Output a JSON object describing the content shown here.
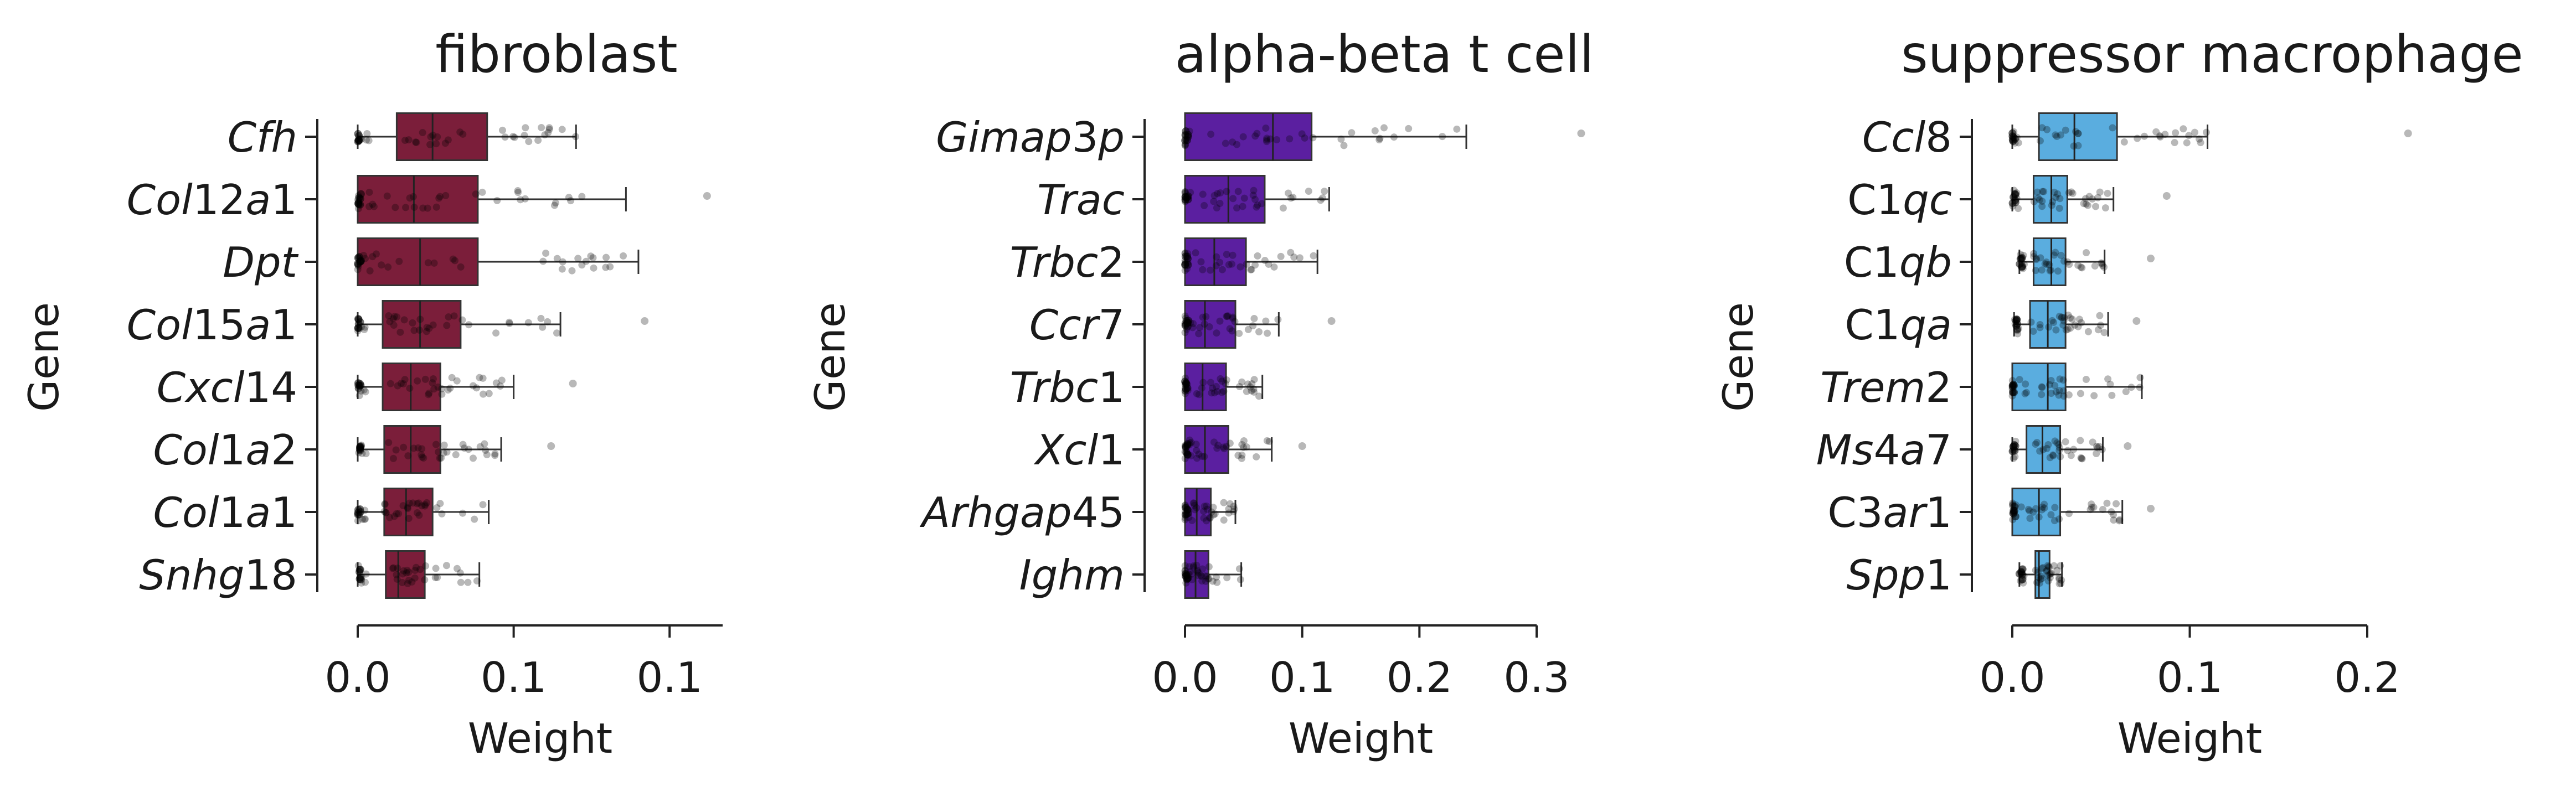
{
  "chart_data": [
    {
      "type": "box",
      "title": "fibroblast",
      "xlabel": "Weight",
      "ylabel": "Gene",
      "color": "#7b1e3a",
      "xlim": [
        0,
        0.117
      ],
      "xticks": [
        0.0,
        0.05,
        0.1
      ],
      "xtick_labels": [
        "0.0",
        "0.1",
        "0.1"
      ],
      "categories": [
        {
          "parts": [
            [
              "Cfh",
              true
            ]
          ]
        },
        {
          "parts": [
            [
              "Col",
              true
            ],
            [
              "12",
              false
            ],
            [
              "a",
              true
            ],
            [
              "1",
              false
            ]
          ]
        },
        {
          "parts": [
            [
              "Dpt",
              true
            ]
          ]
        },
        {
          "parts": [
            [
              "Col",
              true
            ],
            [
              "15",
              false
            ],
            [
              "a",
              true
            ],
            [
              "1",
              false
            ]
          ]
        },
        {
          "parts": [
            [
              "Cxcl",
              true
            ],
            [
              "14",
              false
            ]
          ]
        },
        {
          "parts": [
            [
              "Col",
              true
            ],
            [
              "1",
              false
            ],
            [
              "a",
              true
            ],
            [
              "2",
              false
            ]
          ]
        },
        {
          "parts": [
            [
              "Col",
              true
            ],
            [
              "1",
              false
            ],
            [
              "a",
              true
            ],
            [
              "1",
              false
            ]
          ]
        },
        {
          "parts": [
            [
              "Snhg",
              true
            ],
            [
              "18",
              false
            ]
          ]
        }
      ],
      "boxes": [
        {
          "wlo": 0.0,
          "q1": 0.0125,
          "median": 0.024,
          "q3": 0.0415,
          "whi": 0.07,
          "outliers": []
        },
        {
          "wlo": 0.0,
          "q1": 0.0,
          "median": 0.018,
          "q3": 0.0385,
          "whi": 0.086,
          "outliers": [
            0.112
          ]
        },
        {
          "wlo": 0.0,
          "q1": 0.0,
          "median": 0.02,
          "q3": 0.0385,
          "whi": 0.09,
          "outliers": []
        },
        {
          "wlo": 0.0,
          "q1": 0.008,
          "median": 0.02,
          "q3": 0.033,
          "whi": 0.065,
          "outliers": [
            0.092
          ]
        },
        {
          "wlo": 0.0,
          "q1": 0.008,
          "median": 0.017,
          "q3": 0.0265,
          "whi": 0.05,
          "outliers": [
            0.069
          ]
        },
        {
          "wlo": 0.0,
          "q1": 0.0085,
          "median": 0.017,
          "q3": 0.0265,
          "whi": 0.046,
          "outliers": [
            0.062
          ]
        },
        {
          "wlo": 0.0,
          "q1": 0.0085,
          "median": 0.0155,
          "q3": 0.024,
          "whi": 0.042,
          "outliers": []
        },
        {
          "wlo": 0.0,
          "q1": 0.009,
          "median": 0.013,
          "q3": 0.0215,
          "whi": 0.039,
          "outliers": []
        }
      ]
    },
    {
      "type": "box",
      "title": "alpha-beta t cell",
      "xlabel": "Weight",
      "ylabel": "Gene",
      "color": "#5b1fa0",
      "xlim": [
        0,
        0.3
      ],
      "xticks": [
        0.0,
        0.1,
        0.2,
        0.3
      ],
      "xtick_labels": [
        "0.0",
        "0.1",
        "0.2",
        "0.3"
      ],
      "categories": [
        {
          "parts": [
            [
              "Gimap",
              true
            ],
            [
              "3",
              false
            ],
            [
              "p",
              true
            ]
          ]
        },
        {
          "parts": [
            [
              "Trac",
              true
            ]
          ]
        },
        {
          "parts": [
            [
              "Trbc",
              true
            ],
            [
              "2",
              false
            ]
          ]
        },
        {
          "parts": [
            [
              "Ccr",
              true
            ],
            [
              "7",
              false
            ]
          ]
        },
        {
          "parts": [
            [
              "Trbc",
              true
            ],
            [
              "1",
              false
            ]
          ]
        },
        {
          "parts": [
            [
              "Xcl",
              true
            ],
            [
              "1",
              false
            ]
          ]
        },
        {
          "parts": [
            [
              "Arhgap",
              true
            ],
            [
              "45",
              false
            ]
          ]
        },
        {
          "parts": [
            [
              "Ighm",
              true
            ]
          ]
        }
      ],
      "boxes": [
        {
          "wlo": 0.0,
          "q1": 0.0,
          "median": 0.075,
          "q3": 0.108,
          "whi": 0.24,
          "outliers": [
            0.338
          ]
        },
        {
          "wlo": 0.0,
          "q1": 0.0,
          "median": 0.037,
          "q3": 0.068,
          "whi": 0.123,
          "outliers": []
        },
        {
          "wlo": 0.0,
          "q1": 0.0,
          "median": 0.025,
          "q3": 0.052,
          "whi": 0.113,
          "outliers": []
        },
        {
          "wlo": 0.0,
          "q1": 0.0,
          "median": 0.017,
          "q3": 0.043,
          "whi": 0.08,
          "outliers": [
            0.125
          ]
        },
        {
          "wlo": 0.0,
          "q1": 0.0,
          "median": 0.015,
          "q3": 0.035,
          "whi": 0.066,
          "outliers": []
        },
        {
          "wlo": 0.0,
          "q1": 0.0,
          "median": 0.017,
          "q3": 0.037,
          "whi": 0.074,
          "outliers": [
            0.1
          ]
        },
        {
          "wlo": 0.0,
          "q1": 0.0,
          "median": 0.01,
          "q3": 0.022,
          "whi": 0.043,
          "outliers": []
        },
        {
          "wlo": 0.0,
          "q1": 0.0,
          "median": 0.009,
          "q3": 0.02,
          "whi": 0.048,
          "outliers": []
        }
      ]
    },
    {
      "type": "box",
      "title": "suppressor macrophage",
      "xlabel": "Weight",
      "ylabel": "Gene",
      "color": "#5aaddf",
      "xlim": [
        0,
        0.2
      ],
      "xticks": [
        0.0,
        0.1,
        0.2
      ],
      "xtick_labels": [
        "0.0",
        "0.1",
        "0.2"
      ],
      "categories": [
        {
          "parts": [
            [
              "Ccl",
              true
            ],
            [
              "8",
              false
            ]
          ]
        },
        {
          "parts": [
            [
              "C",
              false
            ],
            [
              "1",
              false
            ],
            [
              "qc",
              true
            ]
          ]
        },
        {
          "parts": [
            [
              "C",
              false
            ],
            [
              "1",
              false
            ],
            [
              "qb",
              true
            ]
          ]
        },
        {
          "parts": [
            [
              "C",
              false
            ],
            [
              "1",
              false
            ],
            [
              "qa",
              true
            ]
          ]
        },
        {
          "parts": [
            [
              "Trem",
              true
            ],
            [
              "2",
              false
            ]
          ]
        },
        {
          "parts": [
            [
              "Ms",
              true
            ],
            [
              "4",
              false
            ],
            [
              "a",
              true
            ],
            [
              "7",
              false
            ]
          ]
        },
        {
          "parts": [
            [
              "C",
              false
            ],
            [
              "3",
              false
            ],
            [
              "ar",
              true
            ],
            [
              "1",
              false
            ]
          ]
        },
        {
          "parts": [
            [
              "Spp",
              true
            ],
            [
              "1",
              false
            ]
          ]
        }
      ],
      "boxes": [
        {
          "wlo": 0.0,
          "q1": 0.015,
          "median": 0.035,
          "q3": 0.059,
          "whi": 0.11,
          "outliers": [
            0.223
          ]
        },
        {
          "wlo": 0.0,
          "q1": 0.012,
          "median": 0.022,
          "q3": 0.031,
          "whi": 0.057,
          "outliers": [
            0.087
          ]
        },
        {
          "wlo": 0.004,
          "q1": 0.012,
          "median": 0.022,
          "q3": 0.03,
          "whi": 0.052,
          "outliers": [
            0.078
          ]
        },
        {
          "wlo": 0.001,
          "q1": 0.01,
          "median": 0.02,
          "q3": 0.03,
          "whi": 0.054,
          "outliers": [
            0.07
          ]
        },
        {
          "wlo": 0.0,
          "q1": 0.0,
          "median": 0.02,
          "q3": 0.03,
          "whi": 0.073,
          "outliers": []
        },
        {
          "wlo": 0.0,
          "q1": 0.008,
          "median": 0.017,
          "q3": 0.027,
          "whi": 0.051,
          "outliers": [
            0.065
          ]
        },
        {
          "wlo": 0.0,
          "q1": 0.0,
          "median": 0.015,
          "q3": 0.027,
          "whi": 0.062,
          "outliers": [
            0.078
          ]
        },
        {
          "wlo": 0.004,
          "q1": 0.013,
          "median": 0.015,
          "q3": 0.021,
          "whi": 0.028,
          "outliers": []
        }
      ]
    }
  ]
}
